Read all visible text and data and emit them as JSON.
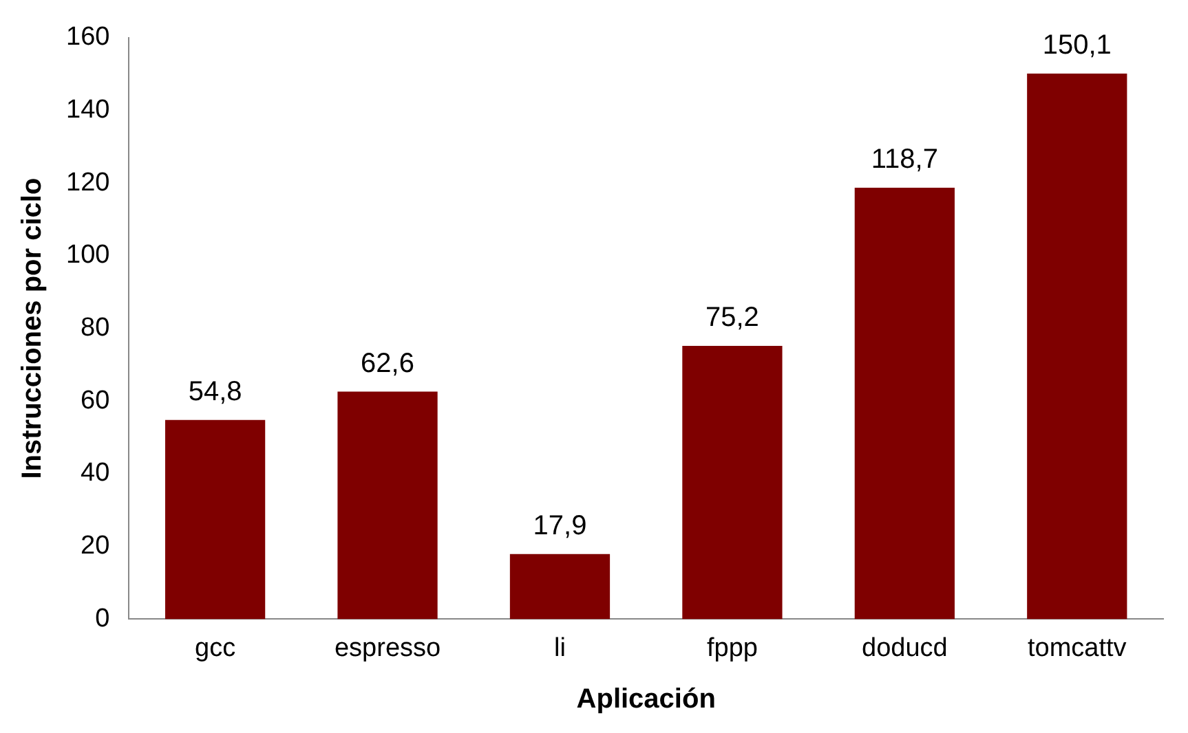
{
  "chart_data": {
    "type": "bar",
    "xlabel": "Aplicación",
    "ylabel": "Instrucciones por ciclo",
    "categories": [
      "gcc",
      "espresso",
      "li",
      "fppp",
      "doducd",
      "tomcattv"
    ],
    "values": [
      54.8,
      62.6,
      17.9,
      75.2,
      118.7,
      150.1
    ],
    "value_labels": [
      "54,8",
      "62,6",
      "17,9",
      "75,2",
      "118,7",
      "150,1"
    ],
    "color": "#7f0000",
    "ylim": [
      0,
      160
    ],
    "yticks": [
      0,
      20,
      40,
      60,
      80,
      100,
      120,
      140,
      160
    ],
    "grid": false,
    "legend": false
  }
}
